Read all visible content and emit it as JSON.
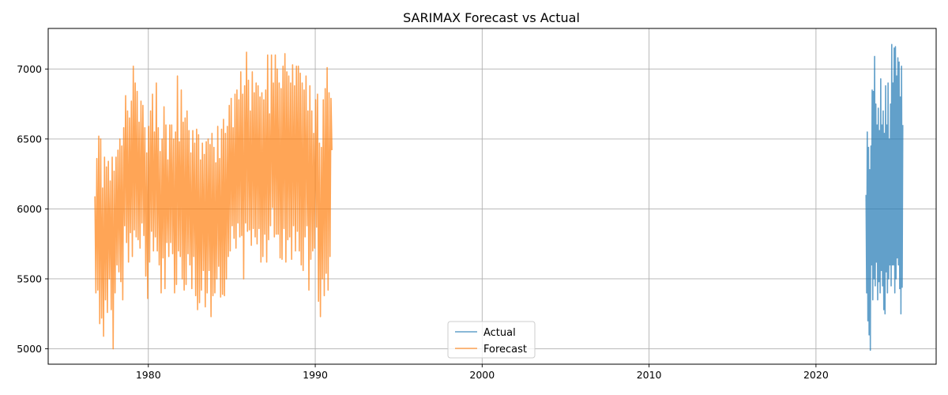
{
  "chart_data": {
    "type": "line",
    "title": "SARIMAX Forecast vs Actual",
    "xlabel": "",
    "ylabel": "",
    "xlim": [
      1974.0,
      2027.2
    ],
    "ylim": [
      4890,
      7290
    ],
    "x_ticks": [
      1980,
      1990,
      2000,
      2010,
      2020
    ],
    "y_ticks": [
      5000,
      5500,
      6000,
      6500,
      7000
    ],
    "grid": true,
    "legend_position": "lower-center",
    "series": [
      {
        "name": "Actual",
        "color": "#1f77b4",
        "opacity": 0.7,
        "x_start": 2023.0,
        "x_end": 2025.2,
        "values": [
          6100,
          5400,
          6550,
          5200,
          6440,
          5100,
          6280,
          4990,
          6450,
          5600,
          6850,
          5350,
          6840,
          5500,
          7090,
          5450,
          6750,
          5620,
          6600,
          5350,
          6720,
          5480,
          6560,
          5400,
          6930,
          5560,
          6600,
          5450,
          6700,
          5280,
          6540,
          5250,
          6880,
          5550,
          6600,
          5400,
          6900,
          5500,
          6500,
          5600,
          6750,
          5450,
          7175,
          5600,
          6900,
          5600,
          7150,
          5400,
          7160,
          5500,
          6950,
          5650,
          7080,
          5600,
          7050,
          5430,
          6800,
          5250,
          7020,
          5440,
          6600
        ]
      },
      {
        "name": "Forecast",
        "color": "#ff7f0e",
        "opacity": 0.7,
        "x_start": 1976.8,
        "x_end": 1991.0,
        "values": [
          6090,
          5400,
          6360,
          5420,
          6520,
          5180,
          6500,
          5220,
          6150,
          5090,
          6370,
          5350,
          6300,
          5260,
          6340,
          5500,
          6200,
          5280,
          6370,
          5000,
          6270,
          5400,
          6370,
          5600,
          6420,
          5550,
          6500,
          5480,
          6450,
          5350,
          6580,
          5880,
          6810,
          5760,
          6700,
          5620,
          6650,
          5830,
          6770,
          5660,
          7020,
          5850,
          6900,
          5800,
          6840,
          5780,
          6620,
          5720,
          6770,
          5900,
          6740,
          5810,
          6580,
          5520,
          6400,
          5360,
          6590,
          5620,
          6700,
          5840,
          6820,
          5700,
          6550,
          5800,
          6900,
          5700,
          6580,
          5600,
          6410,
          5400,
          6500,
          5650,
          6730,
          5430,
          6600,
          5760,
          6350,
          5660,
          6600,
          5760,
          6600,
          5680,
          6500,
          5400,
          6550,
          5460,
          6950,
          5700,
          6480,
          5660,
          6850,
          5500,
          6620,
          5420,
          6650,
          5460,
          6700,
          5680,
          6560,
          5600,
          6400,
          5430,
          6560,
          5660,
          6470,
          5380,
          6570,
          5280,
          6530,
          5330,
          6350,
          5420,
          6470,
          5560,
          6390,
          5300,
          6480,
          5400,
          6500,
          5560,
          6460,
          5230,
          6540,
          5380,
          6440,
          5400,
          6330,
          5500,
          6590,
          5590,
          6360,
          5370,
          6570,
          5390,
          6640,
          5380,
          6540,
          5500,
          6590,
          5660,
          6740,
          5700,
          6790,
          5880,
          6580,
          5790,
          6820,
          5720,
          6850,
          5900,
          6780,
          5800,
          6980,
          5810,
          6820,
          5500,
          6880,
          5900,
          7120,
          5840,
          6920,
          5850,
          6700,
          5740,
          6980,
          5860,
          6830,
          5800,
          6900,
          5750,
          6880,
          5860,
          6800,
          5620,
          6830,
          5660,
          6780,
          5820,
          6850,
          5620,
          7100,
          5780,
          6680,
          5880,
          7100,
          6010,
          6900,
          5800,
          7100,
          5820,
          7000,
          5820,
          6900,
          5650,
          6860,
          5640,
          7020,
          5860,
          7110,
          5620,
          6980,
          5780,
          6950,
          5800,
          6900,
          5640,
          7030,
          5880,
          6880,
          5700,
          7020,
          5840,
          7020,
          5700,
          6970,
          5600,
          6900,
          5560,
          6850,
          5800,
          6950,
          5880,
          6700,
          5420,
          6880,
          5640,
          6700,
          5700,
          6540,
          5720,
          6780,
          5870,
          6820,
          5340,
          6470,
          5230,
          6440,
          5500,
          6780,
          5380,
          6860,
          5540,
          7010,
          5420,
          6830,
          5660,
          6790,
          6420
        ]
      }
    ]
  }
}
